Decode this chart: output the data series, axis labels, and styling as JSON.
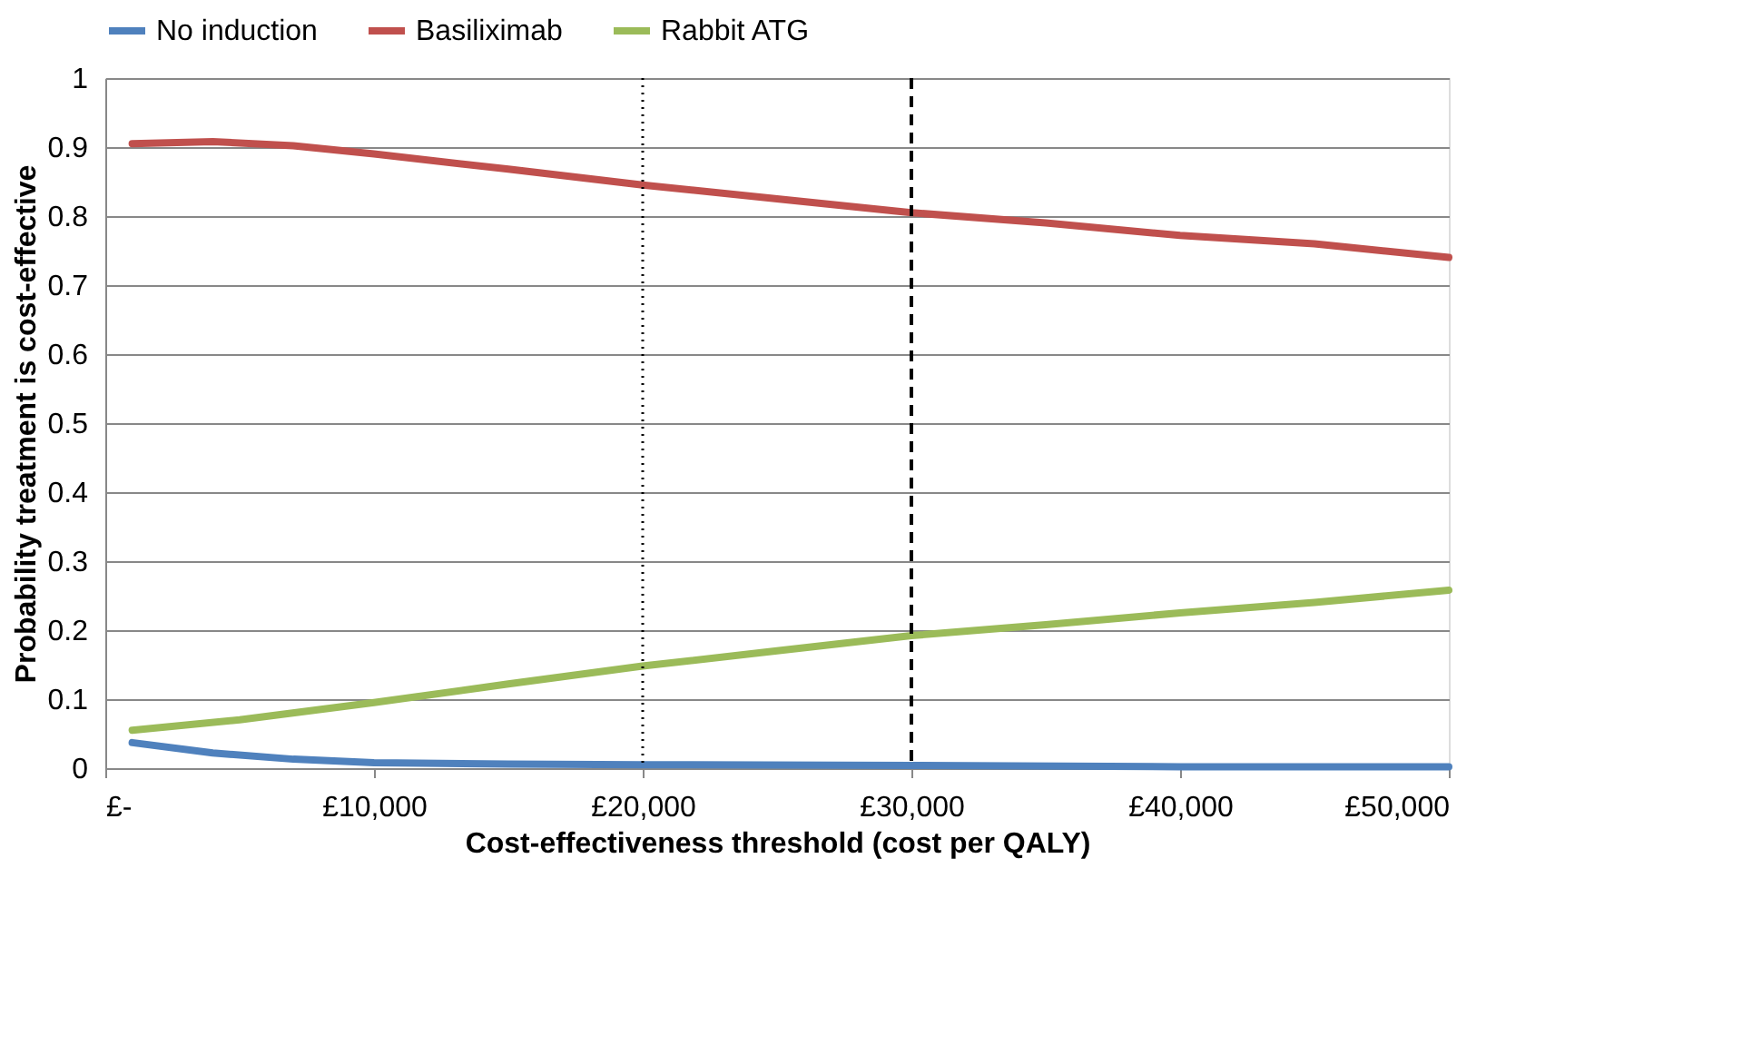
{
  "chart_data": {
    "type": "line",
    "xlabel": "Cost-effectiveness threshold (cost per QALY)",
    "ylabel": "Probability treatment is cost-effective",
    "series": [
      {
        "name": "No induction",
        "color": "#4f81bd",
        "x": [
          1000,
          4000,
          7000,
          10000,
          15000,
          20000,
          30000,
          40000,
          50000
        ],
        "values": [
          0.037,
          0.022,
          0.013,
          0.008,
          0.006,
          0.005,
          0.004,
          0.002,
          0.002
        ]
      },
      {
        "name": "Basiliximab",
        "color": "#c0504d",
        "x": [
          1000,
          4000,
          7000,
          10000,
          15000,
          20000,
          25000,
          30000,
          35000,
          40000,
          45000,
          50000
        ],
        "values": [
          0.905,
          0.908,
          0.902,
          0.89,
          0.868,
          0.845,
          0.825,
          0.805,
          0.79,
          0.772,
          0.76,
          0.74
        ]
      },
      {
        "name": "Rabbit ATG",
        "color": "#9bbb59",
        "x": [
          1000,
          5000,
          10000,
          15000,
          20000,
          25000,
          30000,
          35000,
          40000,
          45000,
          50000
        ],
        "values": [
          0.055,
          0.07,
          0.095,
          0.122,
          0.148,
          0.17,
          0.192,
          0.208,
          0.225,
          0.24,
          0.258
        ]
      }
    ],
    "xlim": [
      0,
      50000
    ],
    "xticks": [
      {
        "value": 0,
        "label": "£-"
      },
      {
        "value": 10000,
        "label": "£10,000"
      },
      {
        "value": 20000,
        "label": "£20,000"
      },
      {
        "value": 30000,
        "label": "£30,000"
      },
      {
        "value": 40000,
        "label": "£40,000"
      },
      {
        "value": 50000,
        "label": "£50,000"
      }
    ],
    "ylim": [
      0,
      1
    ],
    "yticks": [
      0,
      0.1,
      0.2,
      0.3,
      0.4,
      0.5,
      0.6,
      0.7,
      0.8,
      0.9,
      1
    ],
    "ref_lines": [
      {
        "axis": "x",
        "value": 20000,
        "line_style": "dotted",
        "color": "#000000"
      },
      {
        "axis": "x",
        "value": 30000,
        "line_style": "dashed",
        "color": "#000000"
      }
    ],
    "grid": "y",
    "legend": "top",
    "marker": "none",
    "line_style": "solid"
  }
}
